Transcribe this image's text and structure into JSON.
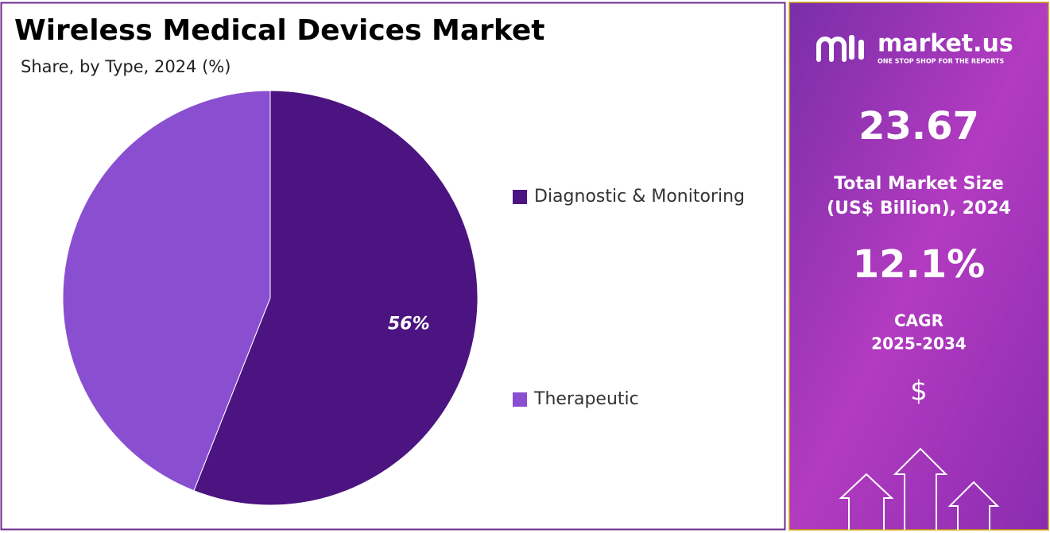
{
  "chart_data": {
    "type": "pie",
    "title": "Wireless Medical Devices Market",
    "subtitle": "Share, by Type, 2024 (%)",
    "categories": [
      "Diagnostic & Monitoring",
      "Therapeutic"
    ],
    "values": [
      56,
      44
    ],
    "value_labels": [
      "56%",
      null
    ],
    "colors": [
      "#4b1480",
      "#8a4fd0"
    ]
  },
  "panel": {
    "logo": "market.us",
    "tagline": "ONE STOP SHOP FOR THE REPORTS",
    "market_size": "23.67",
    "market_size_label": [
      "Total Market Size",
      "(US$ Billion), 2024"
    ],
    "cagr": "12.1%",
    "cagr_label": [
      "CAGR",
      "2025-2034"
    ],
    "currency": "$"
  }
}
